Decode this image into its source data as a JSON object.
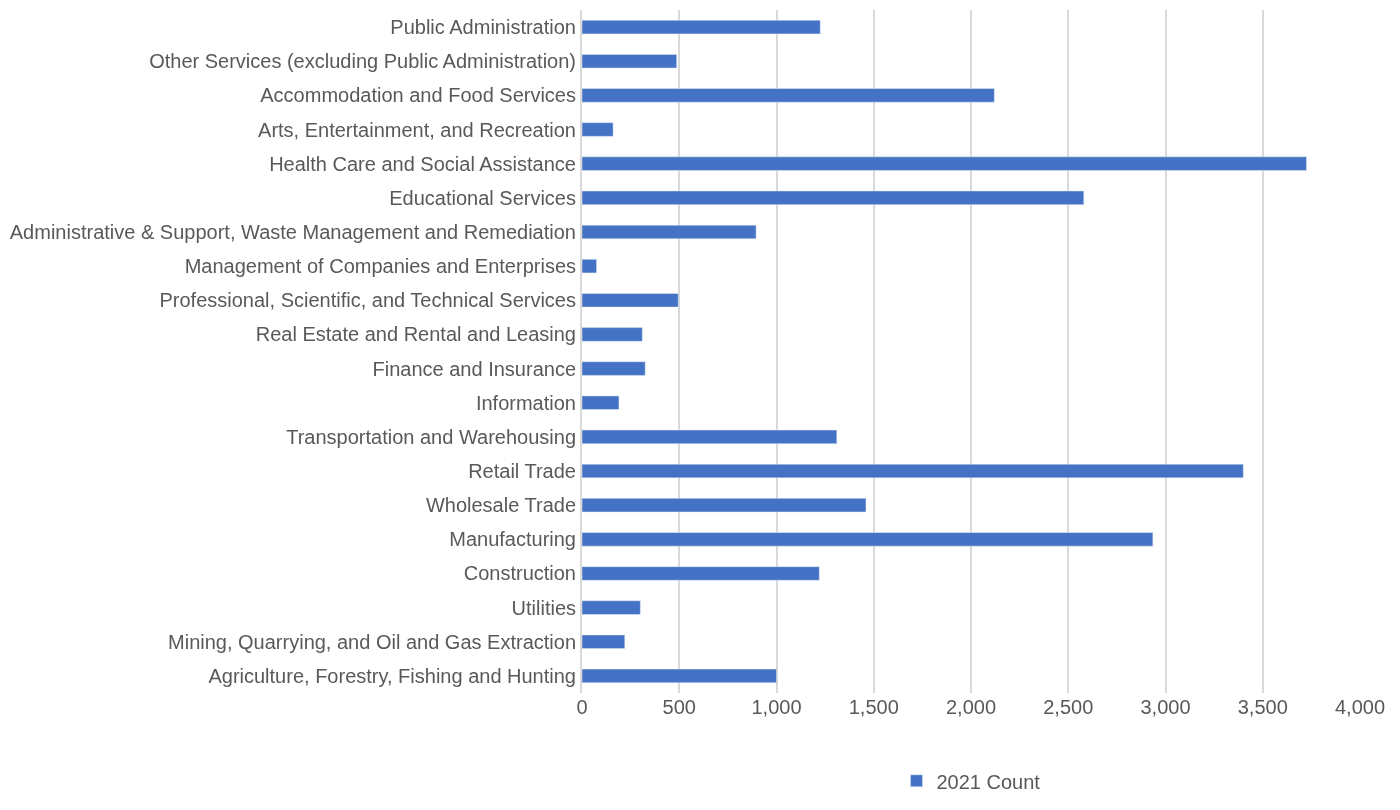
{
  "chart_data": {
    "type": "bar",
    "orientation": "horizontal",
    "categories": [
      "Public Administration",
      "Other Services (excluding Public Administration)",
      "Accommodation and Food Services",
      "Arts, Entertainment, and Recreation",
      "Health Care and Social Assistance",
      "Educational Services",
      "Administrative & Support, Waste Management and Remediation",
      "Management of Companies and Enterprises",
      "Professional, Scientific, and Technical Services",
      "Real Estate and Rental and Leasing",
      "Finance and Insurance",
      "Information",
      "Transportation and Warehousing",
      "Retail Trade",
      "Wholesale Trade",
      "Manufacturing",
      "Construction",
      "Utilities",
      "Mining, Quarrying, and Oil and Gas Extraction",
      "Agriculture, Forestry, Fishing and Hunting"
    ],
    "series": [
      {
        "name": "2021 Count",
        "color": "#4472c4",
        "values": [
          1225,
          487,
          2120,
          160,
          3725,
          2580,
          895,
          75,
          495,
          310,
          325,
          190,
          1310,
          3400,
          1460,
          2935,
          1220,
          300,
          220,
          1000
        ]
      }
    ],
    "xlim": [
      0,
      4000
    ],
    "xticks": [
      {
        "value": 0,
        "label": "0"
      },
      {
        "value": 500,
        "label": "500"
      },
      {
        "value": 1000,
        "label": "1,000"
      },
      {
        "value": 1500,
        "label": "1,500"
      },
      {
        "value": 2000,
        "label": "2,000"
      },
      {
        "value": 2500,
        "label": "2,500"
      },
      {
        "value": 3000,
        "label": "3,000"
      },
      {
        "value": 3500,
        "label": "3,500"
      },
      {
        "value": 4000,
        "label": "4,000"
      }
    ],
    "grid": "x",
    "legend": "bottom"
  }
}
